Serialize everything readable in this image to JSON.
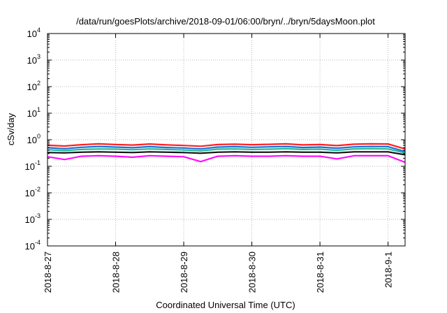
{
  "chart_data": {
    "type": "line",
    "title": "/data/run/goesPlots/archive/2018-09-01/06:00/bryn/../bryn/5daysMoon.plot",
    "xlabel": "Coordinated Universal Time (UTC)",
    "ylabel": "cSv/day",
    "y_scale": "log",
    "ylim": [
      0.0001,
      10000
    ],
    "y_ticks": [
      {
        "base": "10",
        "exp": "4",
        "value": 10000
      },
      {
        "base": "10",
        "exp": "3",
        "value": 1000
      },
      {
        "base": "10",
        "exp": "2",
        "value": 100
      },
      {
        "base": "10",
        "exp": "1",
        "value": 10
      },
      {
        "base": "10",
        "exp": "0",
        "value": 1
      },
      {
        "base": "10",
        "exp": "-1",
        "value": 0.1
      },
      {
        "base": "10",
        "exp": "-2",
        "value": 0.01
      },
      {
        "base": "10",
        "exp": "-3",
        "value": 0.001
      },
      {
        "base": "10",
        "exp": "-4",
        "value": 0.0001
      }
    ],
    "xlim": [
      "2018-08-27T00:00",
      "2018-09-01T06:00"
    ],
    "x_ticks": [
      {
        "label": "2018-8-27",
        "value": "2018-08-27"
      },
      {
        "label": "2018-8-28",
        "value": "2018-08-28"
      },
      {
        "label": "2018-8-29",
        "value": "2018-08-29"
      },
      {
        "label": "2018-8-30",
        "value": "2018-08-30"
      },
      {
        "label": "2018-8-31",
        "value": "2018-08-31"
      },
      {
        "label": "2018-9-1",
        "value": "2018-09-01"
      }
    ],
    "grid": true,
    "legend": "none",
    "x": [
      "2018-08-27T00:00",
      "2018-08-27T06:00",
      "2018-08-27T12:00",
      "2018-08-27T18:00",
      "2018-08-28T00:00",
      "2018-08-28T06:00",
      "2018-08-28T12:00",
      "2018-08-28T18:00",
      "2018-08-29T00:00",
      "2018-08-29T06:00",
      "2018-08-29T12:00",
      "2018-08-29T18:00",
      "2018-08-30T00:00",
      "2018-08-30T06:00",
      "2018-08-30T12:00",
      "2018-08-30T18:00",
      "2018-08-31T00:00",
      "2018-08-31T06:00",
      "2018-08-31T12:00",
      "2018-08-31T18:00",
      "2018-09-01T00:00",
      "2018-09-01T06:00"
    ],
    "series": [
      {
        "color": "#ff2020",
        "values": [
          0.62,
          0.58,
          0.65,
          0.7,
          0.66,
          0.63,
          0.69,
          0.64,
          0.61,
          0.57,
          0.66,
          0.68,
          0.65,
          0.67,
          0.7,
          0.64,
          0.66,
          0.6,
          0.68,
          0.7,
          0.69,
          0.45
        ]
      },
      {
        "color": "#1e6fd9",
        "values": [
          0.5,
          0.46,
          0.52,
          0.56,
          0.53,
          0.5,
          0.55,
          0.51,
          0.49,
          0.45,
          0.53,
          0.55,
          0.52,
          0.54,
          0.56,
          0.51,
          0.53,
          0.48,
          0.54,
          0.56,
          0.55,
          0.36
        ]
      },
      {
        "color": "#21b89a",
        "values": [
          0.42,
          0.39,
          0.43,
          0.45,
          0.44,
          0.42,
          0.45,
          0.43,
          0.41,
          0.38,
          0.44,
          0.45,
          0.43,
          0.44,
          0.46,
          0.43,
          0.44,
          0.4,
          0.45,
          0.46,
          0.45,
          0.32
        ]
      },
      {
        "color": "#111111",
        "values": [
          0.33,
          0.32,
          0.34,
          0.35,
          0.34,
          0.33,
          0.35,
          0.34,
          0.33,
          0.31,
          0.34,
          0.35,
          0.34,
          0.34,
          0.35,
          0.34,
          0.34,
          0.32,
          0.35,
          0.35,
          0.35,
          0.27
        ]
      },
      {
        "color": "#ff10ff",
        "values": [
          0.23,
          0.18,
          0.24,
          0.25,
          0.24,
          0.22,
          0.25,
          0.24,
          0.23,
          0.15,
          0.24,
          0.25,
          0.24,
          0.24,
          0.25,
          0.24,
          0.24,
          0.19,
          0.25,
          0.25,
          0.25,
          0.14
        ]
      }
    ]
  }
}
